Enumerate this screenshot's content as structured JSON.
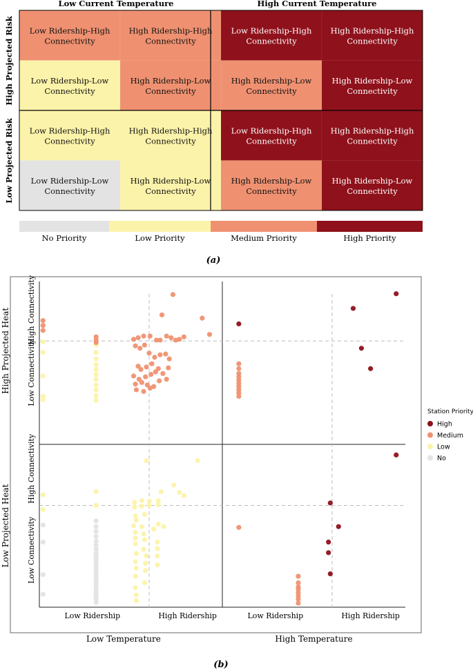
{
  "colors": {
    "no": "#e3e3e3",
    "low": "#fcf3aa",
    "medium": "#ef9171",
    "high": "#8e111b"
  },
  "panel_a": {
    "col_headers": [
      "Low Current Temperature",
      "High Current Temperature"
    ],
    "row_headers": [
      "High Projected Risk",
      "Low Projected Risk"
    ],
    "cells": [
      [
        {
          "l1": "Low Ridership-High",
          "l2": "Connectivity",
          "p": "medium"
        },
        {
          "l1": "High Ridership-High",
          "l2": "Connectivity",
          "p": "medium"
        },
        {
          "l1": "Low Ridership-High",
          "l2": "Connectivity",
          "p": "high"
        },
        {
          "l1": "High Ridership-High",
          "l2": "Connectivity",
          "p": "high"
        }
      ],
      [
        {
          "l1": "Low Ridership-Low",
          "l2": "Connectivity",
          "p": "low"
        },
        {
          "l1": "High Ridership-Low",
          "l2": "Connectivity",
          "p": "medium"
        },
        {
          "l1": "High Ridership-Low",
          "l2": "Connectivity",
          "p": "medium"
        },
        {
          "l1": "High Ridership-Low",
          "l2": "Connectivity",
          "p": "high"
        }
      ],
      [
        {
          "l1": "Low Ridership-High",
          "l2": "Connectivity",
          "p": "low"
        },
        {
          "l1": "High Ridership-High",
          "l2": "Connectivity",
          "p": "low"
        },
        {
          "l1": "Low Ridership-High",
          "l2": "Connectivity",
          "p": "high"
        },
        {
          "l1": "High Ridership-High",
          "l2": "Connectivity",
          "p": "high"
        }
      ],
      [
        {
          "l1": "Low Ridership-Low",
          "l2": "Connectivity",
          "p": "no"
        },
        {
          "l1": "High Ridership-Low",
          "l2": "Connectivity",
          "p": "low"
        },
        {
          "l1": "High Ridership-Low",
          "l2": "Connectivity",
          "p": "medium"
        },
        {
          "l1": "High Ridership-Low",
          "l2": "Connectivity",
          "p": "high"
        }
      ]
    ],
    "legend": [
      {
        "key": "no",
        "label": "No Priority"
      },
      {
        "key": "low",
        "label": "Low Priority"
      },
      {
        "key": "medium",
        "label": "Medium Priority"
      },
      {
        "key": "high",
        "label": "High Priority"
      }
    ],
    "caption": "(a)"
  },
  "chart_data": {
    "type": "scatter",
    "title": "",
    "caption": "(b)",
    "x_groups": [
      "Low Temperature",
      "High Temperature"
    ],
    "x_sublabels": [
      "Low Ridership",
      "High Ridership",
      "Low Ridership",
      "High Ridership"
    ],
    "y_groups": [
      "High Projected Heat",
      "Low Projected Heat"
    ],
    "y_sublabels": [
      "High Connectivity",
      "Low Connectivity",
      "High Connectivity",
      "Low Connectivity"
    ],
    "xlim": [
      0,
      4
    ],
    "ylim": [
      0,
      4
    ],
    "x_ridership_threshold": 1.2,
    "x_temperature_split": 2.0,
    "x_high_ridership_threshold": 3.2,
    "y_heat_split": 2.0,
    "y_conn_threshold_low_heat": 1.25,
    "y_conn_threshold_high_heat": 3.27,
    "legend_title": "Station Priority",
    "legend": [
      {
        "key": "high",
        "label": "High"
      },
      {
        "key": "medium",
        "label": "Medium"
      },
      {
        "key": "low",
        "label": "Low"
      },
      {
        "key": "no",
        "label": "No"
      }
    ],
    "series": [
      {
        "name": "Medium",
        "key": "medium",
        "points": [
          [
            0.04,
            3.52
          ],
          [
            0.04,
            3.46
          ],
          [
            0.04,
            3.4
          ],
          [
            0.62,
            3.32
          ],
          [
            0.62,
            3.28
          ],
          [
            0.62,
            3.25
          ],
          [
            1.03,
            3.29
          ],
          [
            1.08,
            3.31
          ],
          [
            1.14,
            3.33
          ],
          [
            1.21,
            3.33
          ],
          [
            1.28,
            3.28
          ],
          [
            1.32,
            3.28
          ],
          [
            1.39,
            3.33
          ],
          [
            1.44,
            3.31
          ],
          [
            1.49,
            3.28
          ],
          [
            1.53,
            3.29
          ],
          [
            1.58,
            3.32
          ],
          [
            1.46,
            3.84
          ],
          [
            1.34,
            3.59
          ],
          [
            1.78,
            3.55
          ],
          [
            1.86,
            3.35
          ],
          [
            1.05,
            3.21
          ],
          [
            1.1,
            3.18
          ],
          [
            1.15,
            3.22
          ],
          [
            1.2,
            3.12
          ],
          [
            1.26,
            3.07
          ],
          [
            1.32,
            3.1
          ],
          [
            1.38,
            3.11
          ],
          [
            1.42,
            3.05
          ],
          [
            1.08,
            2.96
          ],
          [
            1.11,
            2.92
          ],
          [
            1.17,
            2.95
          ],
          [
            1.23,
            2.99
          ],
          [
            1.3,
            2.93
          ],
          [
            1.35,
            2.87
          ],
          [
            1.41,
            2.94
          ],
          [
            1.03,
            2.84
          ],
          [
            1.09,
            2.8
          ],
          [
            1.16,
            2.83
          ],
          [
            1.22,
            2.86
          ],
          [
            1.27,
            2.89
          ],
          [
            1.05,
            2.74
          ],
          [
            1.12,
            2.76
          ],
          [
            1.18,
            2.73
          ],
          [
            1.25,
            2.71
          ],
          [
            1.31,
            2.78
          ],
          [
            1.39,
            2.8
          ],
          [
            1.06,
            2.67
          ],
          [
            1.14,
            2.65
          ],
          [
            1.21,
            2.69
          ],
          [
            2.18,
            2.99
          ],
          [
            2.18,
            2.93
          ],
          [
            2.18,
            2.87
          ],
          [
            2.18,
            2.83
          ],
          [
            2.18,
            2.79
          ],
          [
            2.18,
            2.75
          ],
          [
            2.18,
            2.71
          ],
          [
            2.18,
            2.67
          ],
          [
            2.18,
            2.63
          ],
          [
            2.18,
            2.59
          ],
          [
            2.18,
            0.98
          ],
          [
            2.83,
            0.38
          ],
          [
            2.83,
            0.3
          ],
          [
            2.83,
            0.25
          ],
          [
            2.83,
            0.22
          ],
          [
            2.83,
            0.18
          ],
          [
            2.83,
            0.14
          ],
          [
            2.83,
            0.1
          ],
          [
            2.83,
            0.05
          ]
        ]
      },
      {
        "name": "High",
        "key": "high",
        "points": [
          [
            2.18,
            3.48
          ],
          [
            3.43,
            3.67
          ],
          [
            3.52,
            3.18
          ],
          [
            3.62,
            2.93
          ],
          [
            3.9,
            3.85
          ],
          [
            3.9,
            1.87
          ],
          [
            3.18,
            1.28
          ],
          [
            3.27,
            0.99
          ],
          [
            3.16,
            0.8
          ],
          [
            3.16,
            0.67
          ],
          [
            3.18,
            0.41
          ]
        ]
      },
      {
        "name": "Low",
        "key": "low",
        "points": [
          [
            0.04,
            3.26
          ],
          [
            0.04,
            3.13
          ],
          [
            0.04,
            2.84
          ],
          [
            0.04,
            2.59
          ],
          [
            0.04,
            2.55
          ],
          [
            0.62,
            3.22
          ],
          [
            0.62,
            3.13
          ],
          [
            0.62,
            3.05
          ],
          [
            0.62,
            2.98
          ],
          [
            0.62,
            2.92
          ],
          [
            0.62,
            2.86
          ],
          [
            0.62,
            2.8
          ],
          [
            0.62,
            2.73
          ],
          [
            0.62,
            2.67
          ],
          [
            0.62,
            2.6
          ],
          [
            0.62,
            2.54
          ],
          [
            1.17,
            1.8
          ],
          [
            1.73,
            1.8
          ],
          [
            0.04,
            1.38
          ],
          [
            0.04,
            1.2
          ],
          [
            0.62,
            1.42
          ],
          [
            0.62,
            1.25
          ],
          [
            1.33,
            1.42
          ],
          [
            1.47,
            1.5
          ],
          [
            1.53,
            1.41
          ],
          [
            1.58,
            1.37
          ],
          [
            1.04,
            1.29
          ],
          [
            1.12,
            1.31
          ],
          [
            1.2,
            1.3
          ],
          [
            1.3,
            1.31
          ],
          [
            1.04,
            1.23
          ],
          [
            1.12,
            1.24
          ],
          [
            1.2,
            1.25
          ],
          [
            1.3,
            1.26
          ],
          [
            1.15,
            1.14
          ],
          [
            1.05,
            1.12
          ],
          [
            1.3,
            1.02
          ],
          [
            1.25,
            0.96
          ],
          [
            1.06,
            1.07
          ],
          [
            1.03,
            1.0
          ],
          [
            1.12,
            0.99
          ],
          [
            1.05,
            0.92
          ],
          [
            1.14,
            0.9
          ],
          [
            1.36,
            0.99
          ],
          [
            1.05,
            0.85
          ],
          [
            1.15,
            0.83
          ],
          [
            1.29,
            0.8
          ],
          [
            1.05,
            0.78
          ],
          [
            1.14,
            0.71
          ],
          [
            1.29,
            0.72
          ],
          [
            1.06,
            0.66
          ],
          [
            1.17,
            0.63
          ],
          [
            1.29,
            0.63
          ],
          [
            1.05,
            0.56
          ],
          [
            1.16,
            0.54
          ],
          [
            1.29,
            0.52
          ],
          [
            1.06,
            0.48
          ],
          [
            1.16,
            0.45
          ],
          [
            1.05,
            0.38
          ],
          [
            1.15,
            0.3
          ],
          [
            1.05,
            0.24
          ],
          [
            1.06,
            0.15
          ],
          [
            1.06,
            0.08
          ]
        ]
      },
      {
        "name": "No",
        "key": "no",
        "points": [
          [
            0.04,
            1.01
          ],
          [
            0.04,
            0.8
          ],
          [
            0.04,
            0.4
          ],
          [
            0.04,
            0.16
          ],
          [
            0.62,
            1.06
          ],
          [
            0.62,
            0.99
          ],
          [
            0.62,
            0.93
          ],
          [
            0.62,
            0.87
          ],
          [
            0.62,
            0.81
          ],
          [
            0.62,
            0.76
          ],
          [
            0.62,
            0.71
          ],
          [
            0.62,
            0.66
          ],
          [
            0.62,
            0.62
          ],
          [
            0.62,
            0.58
          ],
          [
            0.62,
            0.54
          ],
          [
            0.62,
            0.5
          ],
          [
            0.62,
            0.46
          ],
          [
            0.62,
            0.42
          ],
          [
            0.62,
            0.38
          ],
          [
            0.62,
            0.34
          ],
          [
            0.62,
            0.3
          ],
          [
            0.62,
            0.26
          ],
          [
            0.62,
            0.22
          ],
          [
            0.62,
            0.18
          ],
          [
            0.62,
            0.14
          ],
          [
            0.62,
            0.1
          ],
          [
            0.62,
            0.06
          ]
        ]
      }
    ]
  }
}
